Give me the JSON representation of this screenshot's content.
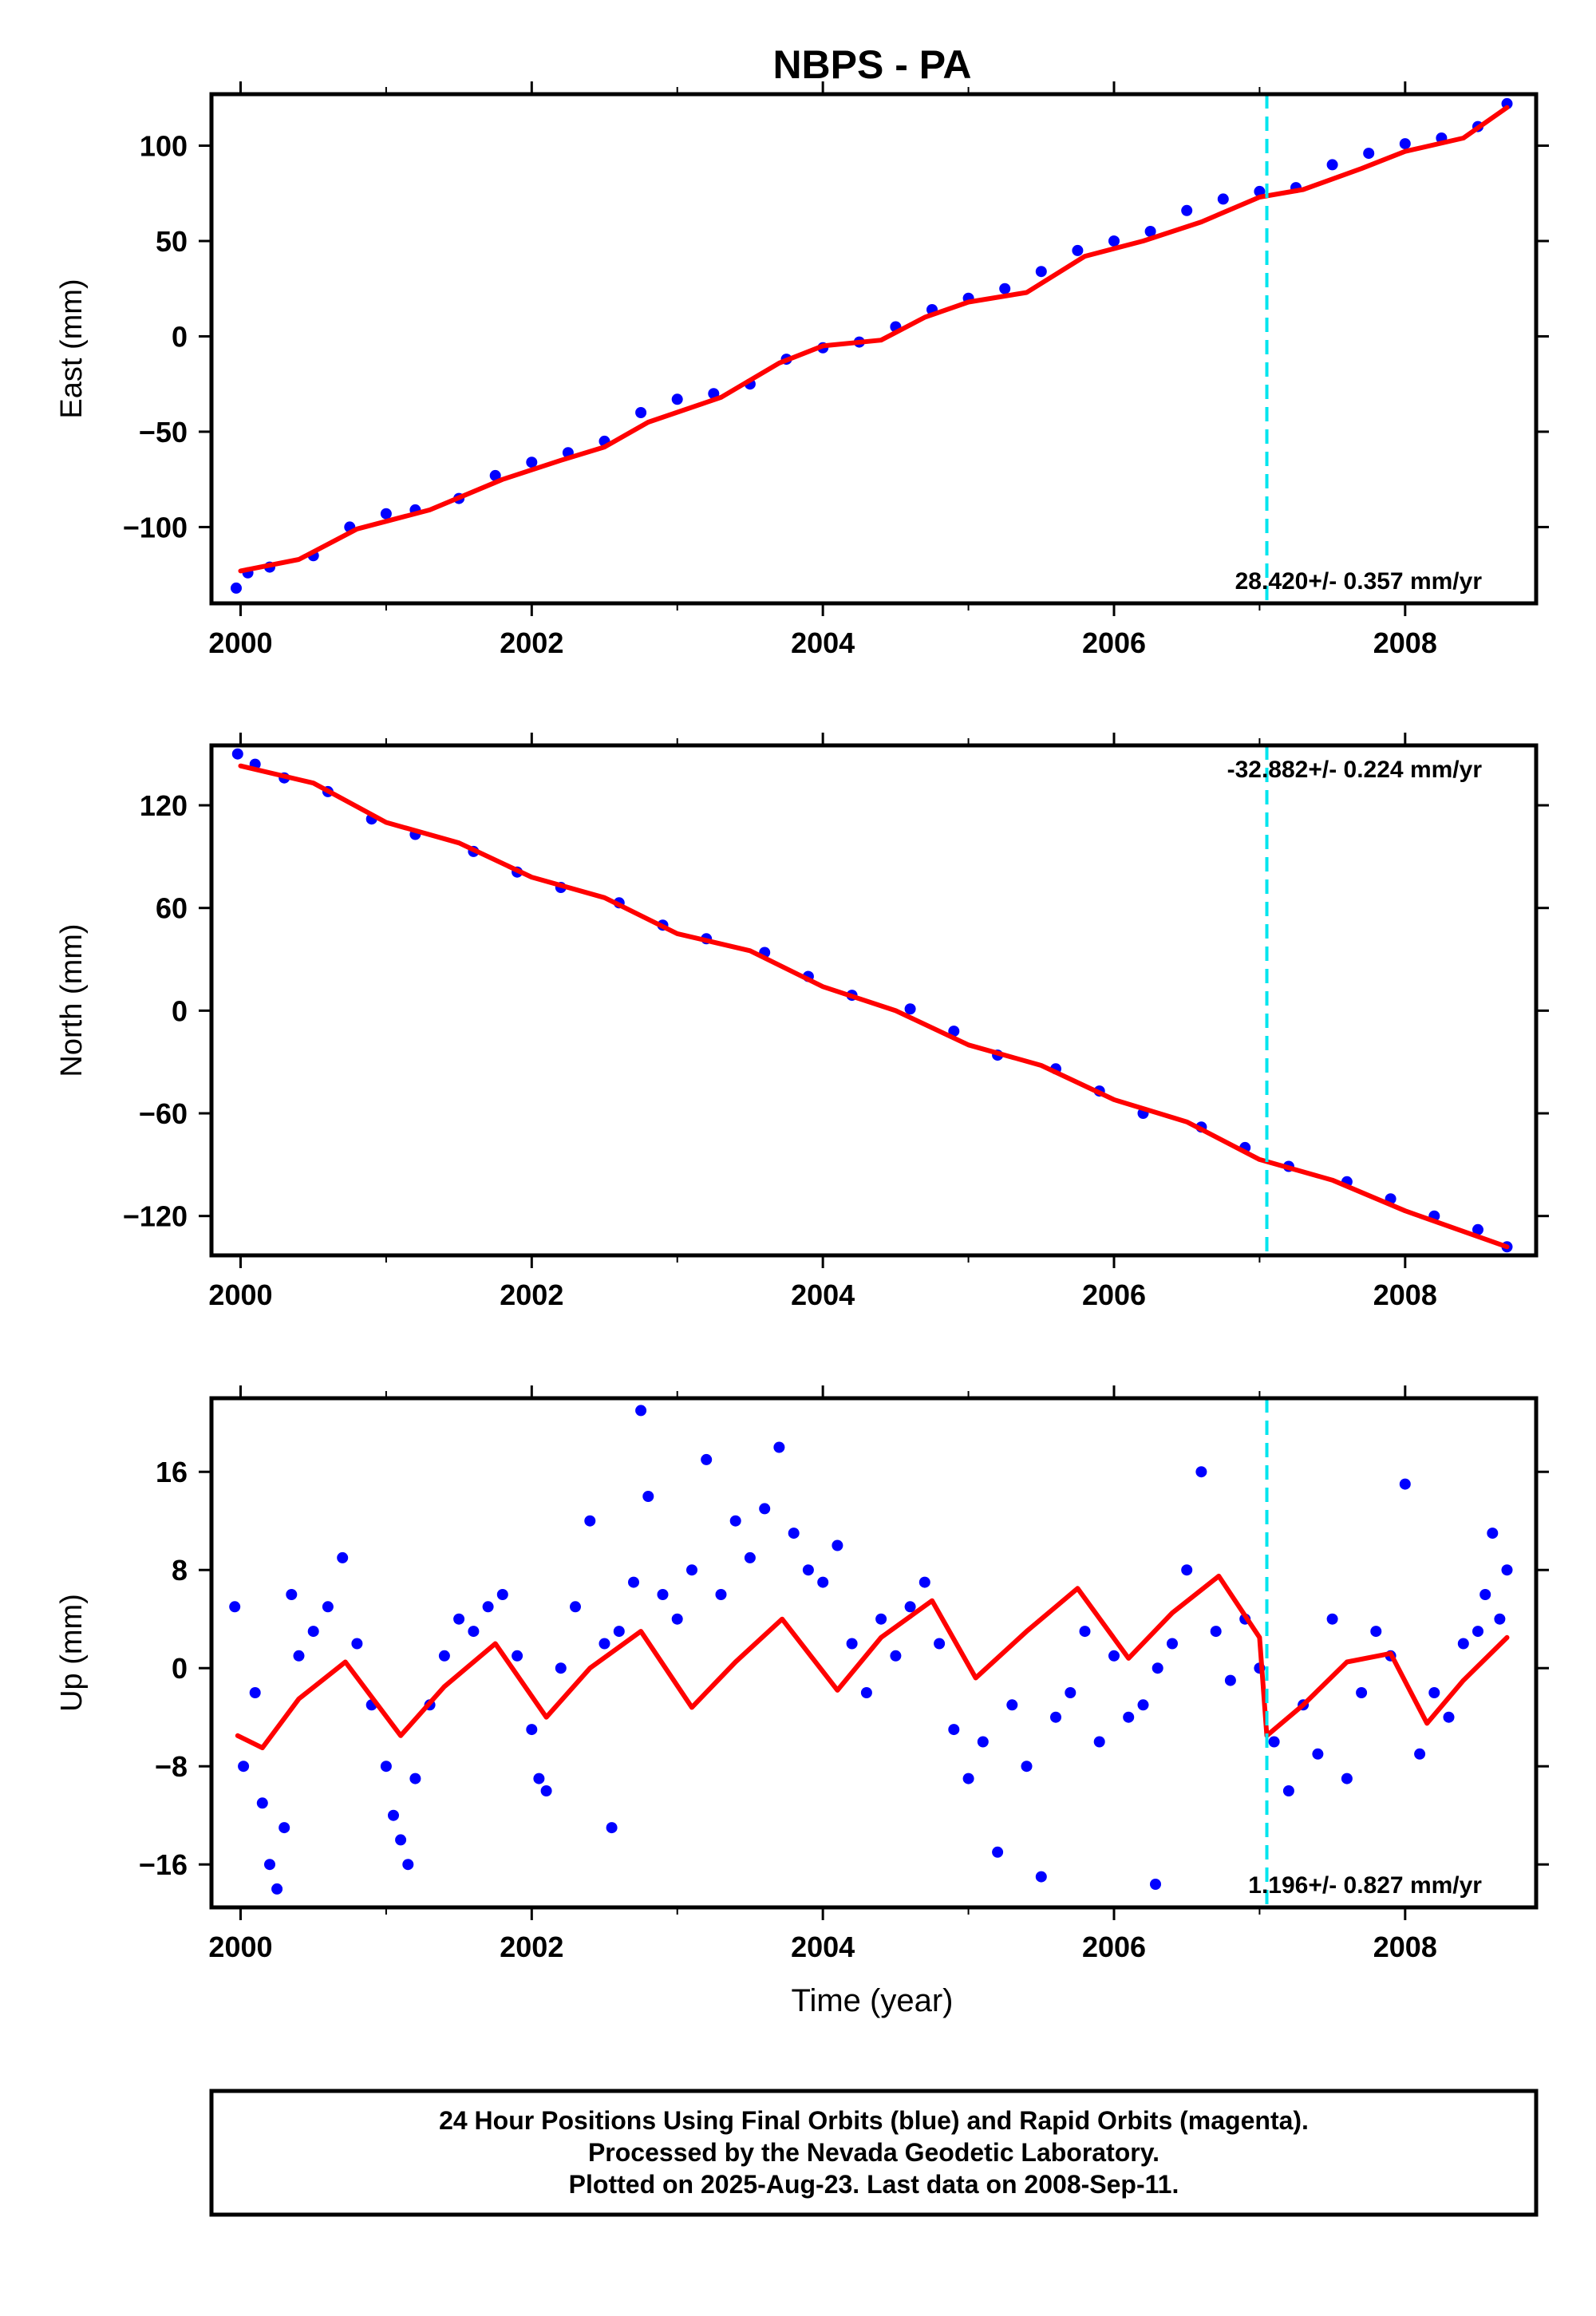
{
  "title": "NBPS - PA",
  "footer": {
    "line1": "24 Hour Positions Using Final Orbits (blue) and Rapid Orbits (magenta).",
    "line2": "Processed by the Nevada Geodetic Laboratory.",
    "line3": "Plotted on 2025-Aug-23. Last data on 2008-Sep-11."
  },
  "colors": {
    "data_points": "#0000ff",
    "model_fit": "#ff0000",
    "equipment_change": "#00e5ee",
    "frame": "#000000"
  },
  "chart_data": [
    {
      "type": "scatter",
      "ylabel": "East (mm)",
      "xlim": [
        1999.8,
        2008.9
      ],
      "ylim": [
        -140,
        127
      ],
      "xticks": [
        2000,
        2002,
        2004,
        2006,
        2008
      ],
      "xtick_labels": [
        "2000",
        "2002",
        "2004",
        "2006",
        "2008"
      ],
      "yticks": [
        -100,
        -50,
        0,
        50,
        100
      ],
      "ytick_labels": [
        "−100",
        "−50",
        "0",
        "50",
        "100"
      ],
      "rate_label": "28.420+/- 0.357 mm/yr",
      "rate_position": "bottom-right",
      "equipment_change_year": 2007.05,
      "model_fit": {
        "x": [
          2000.0,
          2000.4,
          2000.8,
          2001.3,
          2001.8,
          2002.2,
          2002.5,
          2002.8,
          2003.3,
          2003.7,
          2004.0,
          2004.4,
          2004.7,
          2005.0,
          2005.4,
          2005.8,
          2006.2,
          2006.6,
          2007.0,
          2007.3,
          2007.7,
          2008.0,
          2008.4,
          2008.7
        ],
        "y": [
          -123,
          -117,
          -101,
          -91,
          -75,
          -65,
          -58,
          -45,
          -32,
          -14,
          -5,
          -2,
          10,
          18,
          23,
          42,
          50,
          60,
          73,
          77,
          88,
          97,
          104,
          120
        ]
      },
      "series": [
        {
          "values_x": [
            1999.97,
            2000.05,
            2000.2,
            2000.5,
            2000.75,
            2001.0,
            2001.2,
            2001.5,
            2001.75,
            2002.0,
            2002.25,
            2002.5,
            2002.75,
            2003.0,
            2003.25,
            2003.5,
            2003.75,
            2004.0,
            2004.25,
            2004.5,
            2004.75,
            2005.0,
            2005.25,
            2005.5,
            2005.75,
            2006.0,
            2006.25,
            2006.5,
            2006.75,
            2007.0,
            2007.25,
            2007.5,
            2007.75,
            2008.0,
            2008.25,
            2008.5,
            2008.7
          ],
          "values_y": [
            -132,
            -124,
            -121,
            -115,
            -100,
            -93,
            -91,
            -85,
            -73,
            -66,
            -61,
            -55,
            -40,
            -33,
            -30,
            -25,
            -12,
            -6,
            -3,
            5,
            14,
            20,
            25,
            34,
            45,
            50,
            55,
            66,
            72,
            76,
            78,
            90,
            96,
            101,
            104,
            110,
            122
          ]
        }
      ]
    },
    {
      "type": "scatter",
      "ylabel": "North (mm)",
      "xlim": [
        1999.8,
        2008.9
      ],
      "ylim": [
        -143,
        155
      ],
      "xticks": [
        2000,
        2002,
        2004,
        2006,
        2008
      ],
      "xtick_labels": [
        "2000",
        "2002",
        "2004",
        "2006",
        "2008"
      ],
      "yticks": [
        -120,
        -60,
        0,
        60,
        120
      ],
      "ytick_labels": [
        "−120",
        "−60",
        "0",
        "60",
        "120"
      ],
      "rate_label": "-32.882+/- 0.224 mm/yr",
      "rate_position": "top-right",
      "equipment_change_year": 2007.05,
      "model_fit": {
        "x": [
          2000.0,
          2000.5,
          2001.0,
          2001.5,
          2002.0,
          2002.5,
          2003.0,
          2003.5,
          2004.0,
          2004.5,
          2005.0,
          2005.5,
          2006.0,
          2006.5,
          2007.0,
          2007.5,
          2008.0,
          2008.7
        ],
        "y": [
          143,
          133,
          110,
          98,
          78,
          66,
          45,
          35,
          14,
          0,
          -20,
          -32,
          -52,
          -65,
          -87,
          -99,
          -117,
          -138
        ]
      },
      "series": [
        {
          "values_x": [
            1999.98,
            2000.1,
            2000.3,
            2000.6,
            2000.9,
            2001.2,
            2001.6,
            2001.9,
            2002.2,
            2002.6,
            2002.9,
            2003.2,
            2003.6,
            2003.9,
            2004.2,
            2004.6,
            2004.9,
            2005.2,
            2005.6,
            2005.9,
            2006.2,
            2006.6,
            2006.9,
            2007.2,
            2007.6,
            2007.9,
            2008.2,
            2008.5,
            2008.7
          ],
          "values_y": [
            150,
            144,
            136,
            128,
            112,
            103,
            93,
            81,
            72,
            63,
            50,
            42,
            34,
            20,
            9,
            1,
            -12,
            -26,
            -34,
            -47,
            -60,
            -68,
            -80,
            -91,
            -100,
            -110,
            -120,
            -128,
            -138
          ]
        }
      ]
    },
    {
      "type": "scatter",
      "ylabel": "Up (mm)",
      "xlabel": "Time (year)",
      "xlim": [
        1999.8,
        2008.9
      ],
      "ylim": [
        -19.5,
        22
      ],
      "xticks": [
        2000,
        2002,
        2004,
        2006,
        2008
      ],
      "xtick_labels": [
        "2000",
        "2002",
        "2004",
        "2006",
        "2008"
      ],
      "yticks": [
        -16,
        -8,
        0,
        8,
        16
      ],
      "ytick_labels": [
        "−16",
        "−8",
        "0",
        "8",
        "16"
      ],
      "rate_label": "1.196+/- 0.827 mm/yr",
      "rate_position": "bottom-right",
      "equipment_change_year": 2007.05,
      "model_fit": {
        "x": [
          1999.98,
          2000.15,
          2000.4,
          2000.72,
          2001.1,
          2001.4,
          2001.75,
          2002.1,
          2002.4,
          2002.75,
          2003.1,
          2003.4,
          2003.72,
          2004.1,
          2004.4,
          2004.75,
          2005.05,
          2005.4,
          2005.75,
          2006.1,
          2006.4,
          2006.72,
          2007.0,
          2007.05,
          2007.3,
          2007.6,
          2007.9,
          2008.15,
          2008.4,
          2008.7
        ],
        "y": [
          -5.5,
          -6.5,
          -2.5,
          0.5,
          -5.5,
          -1.5,
          2,
          -4,
          0,
          3,
          -3.2,
          0.5,
          4,
          -1.8,
          2.5,
          5.5,
          -0.8,
          3,
          6.5,
          0.8,
          4.5,
          7.5,
          2.5,
          -5.5,
          -3,
          0.5,
          1.2,
          -4.5,
          -1,
          2.5
        ]
      },
      "series": [
        {
          "values_x": [
            1999.96,
            2000.02,
            2000.1,
            2000.15,
            2000.2,
            2000.25,
            2000.3,
            2000.35,
            2000.4,
            2000.5,
            2000.6,
            2000.7,
            2000.8,
            2000.9,
            2001.0,
            2001.05,
            2001.1,
            2001.15,
            2001.2,
            2001.3,
            2001.4,
            2001.5,
            2001.6,
            2001.7,
            2001.8,
            2001.9,
            2002.0,
            2002.05,
            2002.1,
            2002.2,
            2002.3,
            2002.4,
            2002.5,
            2002.55,
            2002.6,
            2002.7,
            2002.75,
            2002.8,
            2002.9,
            2003.0,
            2003.1,
            2003.2,
            2003.3,
            2003.4,
            2003.5,
            2003.6,
            2003.7,
            2003.8,
            2003.9,
            2004.0,
            2004.1,
            2004.2,
            2004.3,
            2004.4,
            2004.5,
            2004.6,
            2004.7,
            2004.8,
            2004.9,
            2005.0,
            2005.1,
            2005.2,
            2005.3,
            2005.4,
            2005.5,
            2005.6,
            2005.7,
            2005.8,
            2005.9,
            2006.0,
            2006.1,
            2006.2,
            2006.3,
            2006.4,
            2006.5,
            2006.6,
            2006.7,
            2006.8,
            2006.9,
            2007.0,
            2007.1,
            2007.2,
            2007.3,
            2007.4,
            2007.5,
            2007.6,
            2007.7,
            2007.8,
            2007.9,
            2008.0,
            2008.1,
            2008.2,
            2008.3,
            2008.4,
            2008.5,
            2008.55,
            2008.6,
            2008.65,
            2008.7
          ],
          "values_y": [
            5,
            -8,
            -2,
            -11,
            -16,
            -18,
            -13,
            6,
            1,
            3,
            5,
            9,
            2,
            -3,
            -8,
            -12,
            -14,
            -16,
            -9,
            -3,
            1,
            4,
            3,
            5,
            6,
            1,
            -5,
            -9,
            -10,
            0,
            5,
            12,
            2,
            -13,
            3,
            7,
            21,
            14,
            6,
            4,
            8,
            17,
            6,
            12,
            9,
            13,
            18,
            11,
            8,
            7,
            10,
            2,
            -2,
            4,
            1,
            5,
            7,
            2,
            -5,
            -9,
            -6,
            -15,
            -3,
            -8,
            -17,
            -4,
            -2,
            3,
            -6,
            1,
            -4,
            -3,
            0,
            2,
            8,
            16,
            3,
            -1,
            4,
            0,
            -6,
            -10,
            -3,
            -7,
            4,
            -9,
            -2,
            3,
            1,
            15,
            -7,
            -2,
            -4,
            2,
            3,
            6,
            11,
            4,
            8
          ]
        }
      ]
    }
  ]
}
